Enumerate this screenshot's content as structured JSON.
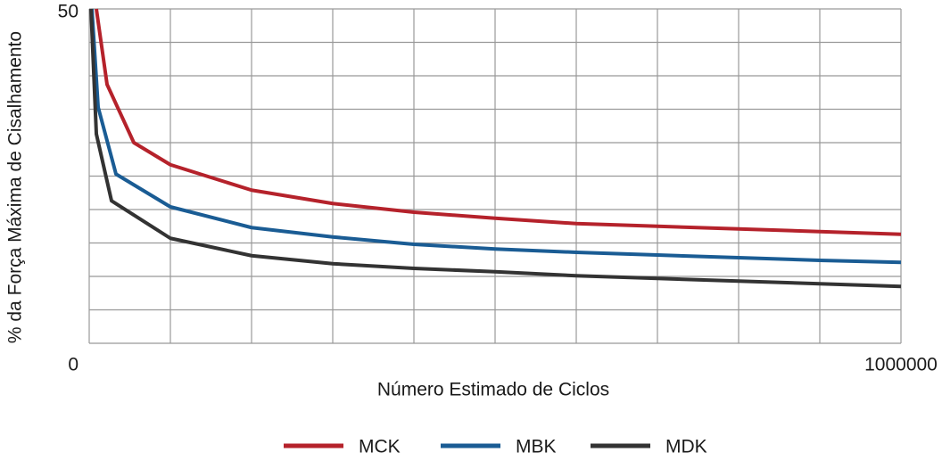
{
  "chart_data": {
    "type": "line",
    "x_label": "Número Estimado de Ciclos",
    "y_label": "% da Força Máxima de Cisalhamento",
    "xlim": [
      0,
      1000000
    ],
    "ylim": [
      0,
      50
    ],
    "xticks": [
      0,
      1000000
    ],
    "yticks": [
      50
    ],
    "xgrid": [
      0,
      100000,
      200000,
      300000,
      400000,
      500000,
      600000,
      700000,
      800000,
      900000,
      1000000
    ],
    "ygrid": [
      0,
      5,
      10,
      15,
      20,
      25,
      30,
      35,
      40,
      45,
      50
    ],
    "grid": true,
    "legend": "bottom",
    "series": [
      {
        "name": "MCK",
        "color": "#b5222b",
        "x": [
          8800,
          22000,
          55000,
          100000,
          200000,
          300000,
          400000,
          500000,
          600000,
          700000,
          800000,
          900000,
          1000000
        ],
        "values": [
          50,
          38.7,
          30,
          26.7,
          22.9,
          20.9,
          19.6,
          18.7,
          17.9,
          17.5,
          17.1,
          16.7,
          16.3
        ]
      },
      {
        "name": "MBK",
        "color": "#1a5c94",
        "x": [
          3300,
          11000,
          33000,
          100000,
          200000,
          300000,
          400000,
          500000,
          600000,
          700000,
          800000,
          900000,
          1000000
        ],
        "values": [
          50,
          35.3,
          25.3,
          20.4,
          17.3,
          15.9,
          14.8,
          14.1,
          13.6,
          13.2,
          12.8,
          12.4,
          12.1
        ]
      },
      {
        "name": "MDK",
        "color": "#333333",
        "x": [
          2200,
          8800,
          27500,
          100000,
          200000,
          300000,
          400000,
          500000,
          600000,
          700000,
          800000,
          900000,
          1000000
        ],
        "values": [
          50,
          31.3,
          21.3,
          15.7,
          13.1,
          11.9,
          11.2,
          10.7,
          10.1,
          9.7,
          9.3,
          8.9,
          8.5
        ]
      }
    ]
  }
}
